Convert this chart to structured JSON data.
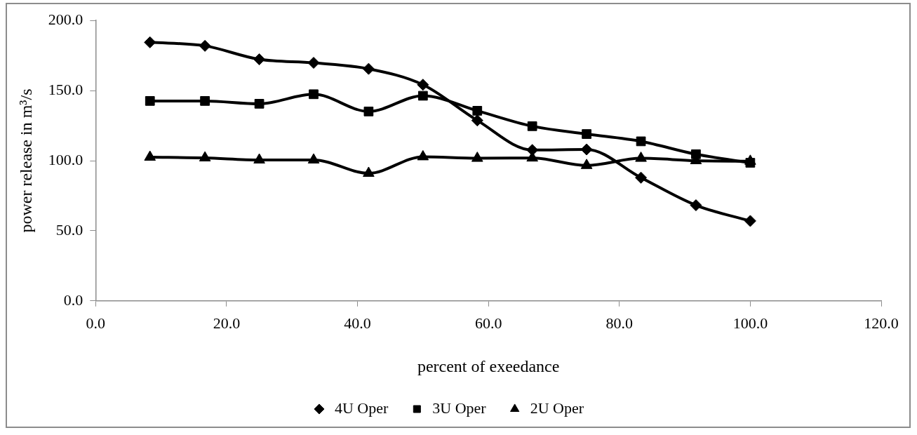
{
  "chart_data": {
    "type": "line",
    "xlabel": "percent of exeedance",
    "ylabel": "power release in m³/s",
    "x": [
      8.3,
      16.7,
      25,
      33.3,
      41.7,
      50,
      58.3,
      66.7,
      75,
      83.3,
      91.7,
      100
    ],
    "series": [
      {
        "name": "4U Oper",
        "color": "#000000",
        "marker": "diamond",
        "values": [
          184.4,
          181.9,
          172.3,
          169.8,
          165.5,
          154.2,
          128.7,
          107.6,
          108,
          87.9,
          68.2,
          57
        ]
      },
      {
        "name": "3U Oper",
        "color": "#000000",
        "marker": "square",
        "values": [
          142.6,
          142.6,
          140.6,
          147.4,
          135.1,
          146.3,
          135.6,
          124.6,
          119,
          113.8,
          104.6,
          98.5
        ]
      },
      {
        "name": "2U Oper",
        "color": "#000000",
        "marker": "triangle",
        "values": [
          102.5,
          102,
          100.5,
          100.5,
          91,
          102.8,
          101.7,
          101.9,
          96.6,
          101.7,
          100,
          99.6
        ]
      }
    ],
    "xlim": [
      0,
      120
    ],
    "xticks": [
      {
        "value": 0,
        "label": "0.0"
      },
      {
        "value": 20,
        "label": "20.0"
      },
      {
        "value": 40,
        "label": "40.0"
      },
      {
        "value": 60,
        "label": "60.0"
      },
      {
        "value": 80,
        "label": "80.0"
      },
      {
        "value": 100,
        "label": "100.0"
      },
      {
        "value": 120,
        "label": "120.0"
      }
    ],
    "ylim": [
      0,
      200
    ],
    "yticks": [
      {
        "value": 0,
        "label": "0.0"
      },
      {
        "value": 50,
        "label": "50.0"
      },
      {
        "value": 100,
        "label": "100.0"
      },
      {
        "value": 150,
        "label": "150.0"
      },
      {
        "value": 200,
        "label": "200.0"
      }
    ],
    "grid": false,
    "legend": "bottom",
    "line_style": "solid"
  }
}
